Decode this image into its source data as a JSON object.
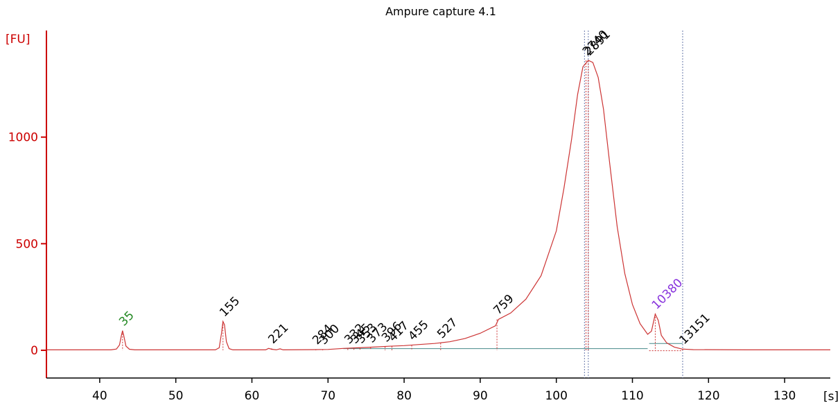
{
  "chart_data": {
    "type": "line",
    "title": "Ampure capture 4.1",
    "ylabel": "[FU]",
    "xlabel": "[s]",
    "xlim": [
      33,
      136
    ],
    "ylim": [
      -130,
      1500
    ],
    "x_ticks": [
      40,
      50,
      60,
      70,
      80,
      90,
      100,
      110,
      120,
      130
    ],
    "y_ticks": [
      0,
      500,
      1000
    ],
    "grid": false,
    "colors": {
      "trace": "#cc3333",
      "axis_y": "#cc0000",
      "axis_x": "#000000",
      "marker_lower": "#228822",
      "marker_upper": "#8833dd",
      "label_default": "#000000",
      "baseline": "#448888",
      "smear_line": "#6677aa"
    },
    "series": [
      {
        "points": [
          [
            33,
            2
          ],
          [
            41.5,
            2
          ],
          [
            42.2,
            6
          ],
          [
            42.6,
            25
          ],
          [
            42.85,
            70
          ],
          [
            43.0,
            92
          ],
          [
            43.15,
            70
          ],
          [
            43.45,
            20
          ],
          [
            43.9,
            5
          ],
          [
            44.6,
            2
          ],
          [
            55.2,
            2
          ],
          [
            55.7,
            12
          ],
          [
            56.0,
            80
          ],
          [
            56.2,
            135
          ],
          [
            56.4,
            120
          ],
          [
            56.65,
            40
          ],
          [
            57.0,
            8
          ],
          [
            57.5,
            2
          ],
          [
            61.8,
            2
          ],
          [
            62.2,
            9
          ],
          [
            62.6,
            5
          ],
          [
            63.2,
            2
          ],
          [
            63.7,
            7
          ],
          [
            64.1,
            2
          ],
          [
            68,
            3
          ],
          [
            70,
            4
          ],
          [
            72,
            9
          ],
          [
            74,
            12
          ],
          [
            76,
            15
          ],
          [
            78,
            19
          ],
          [
            80,
            22
          ],
          [
            82,
            27
          ],
          [
            84,
            32
          ],
          [
            86,
            40
          ],
          [
            88,
            55
          ],
          [
            90,
            80
          ],
          [
            92,
            115
          ],
          [
            92.4,
            145
          ],
          [
            94,
            175
          ],
          [
            96,
            240
          ],
          [
            98,
            350
          ],
          [
            100,
            560
          ],
          [
            101,
            760
          ],
          [
            102,
            990
          ],
          [
            102.8,
            1200
          ],
          [
            103.5,
            1330
          ],
          [
            104.2,
            1360
          ],
          [
            104.8,
            1350
          ],
          [
            105.5,
            1280
          ],
          [
            106.2,
            1130
          ],
          [
            107,
            880
          ],
          [
            108,
            580
          ],
          [
            109,
            360
          ],
          [
            110,
            215
          ],
          [
            111,
            125
          ],
          [
            112,
            75
          ],
          [
            112.5,
            90
          ],
          [
            113.0,
            170
          ],
          [
            113.4,
            140
          ],
          [
            113.8,
            70
          ],
          [
            114.5,
            35
          ],
          [
            115.5,
            15
          ],
          [
            116.5,
            6
          ],
          [
            118,
            3
          ],
          [
            125,
            2
          ],
          [
            136,
            2
          ]
        ]
      }
    ],
    "peaks": [
      {
        "label": "35",
        "x": 43.0,
        "y": 92,
        "kind": "lower"
      },
      {
        "label": "155",
        "x": 56.2,
        "y": 135,
        "kind": "normal"
      },
      {
        "label": "221",
        "x": 62.6,
        "y": 9,
        "kind": "normal"
      },
      {
        "label": "284",
        "x": 68.4,
        "y": 5,
        "kind": "normal"
      },
      {
        "label": "300",
        "x": 69.3,
        "y": 5,
        "kind": "normal"
      },
      {
        "label": "332",
        "x": 72.6,
        "y": 8,
        "kind": "normal"
      },
      {
        "label": "345",
        "x": 73.4,
        "y": 9,
        "kind": "normal"
      },
      {
        "label": "353",
        "x": 74.2,
        "y": 10,
        "kind": "normal"
      },
      {
        "label": "373",
        "x": 75.6,
        "y": 13,
        "kind": "normal"
      },
      {
        "label": "396",
        "x": 77.5,
        "y": 17,
        "kind": "normal"
      },
      {
        "label": "417",
        "x": 78.4,
        "y": 19,
        "kind": "normal"
      },
      {
        "label": "455",
        "x": 81.0,
        "y": 24,
        "kind": "normal"
      },
      {
        "label": "527",
        "x": 84.8,
        "y": 34,
        "kind": "normal"
      },
      {
        "label": "759",
        "x": 92.2,
        "y": 145,
        "kind": "normal"
      },
      {
        "label": "2740",
        "x": 103.9,
        "y": 1360,
        "kind": "normal"
      },
      {
        "label": "2891",
        "x": 104.2,
        "y": 1360,
        "kind": "normal"
      },
      {
        "label": "10380",
        "x": 113.0,
        "y": 170,
        "kind": "upper"
      },
      {
        "label": "13151",
        "x": 116.6,
        "y": 6,
        "kind": "normal"
      }
    ],
    "vertical_lines": [
      103.7,
      104.2,
      116.6
    ]
  }
}
